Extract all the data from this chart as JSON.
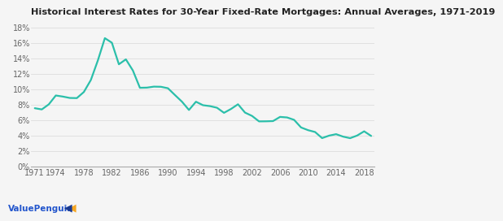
{
  "title": "Historical Interest Rates for 30-Year Fixed-Rate Mortgages: Annual Averages, 1971-2019",
  "years": [
    1971,
    1972,
    1973,
    1974,
    1975,
    1976,
    1977,
    1978,
    1979,
    1980,
    1981,
    1982,
    1983,
    1984,
    1985,
    1986,
    1987,
    1988,
    1989,
    1990,
    1991,
    1992,
    1993,
    1994,
    1995,
    1996,
    1997,
    1998,
    1999,
    2000,
    2001,
    2002,
    2003,
    2004,
    2005,
    2006,
    2007,
    2008,
    2009,
    2010,
    2011,
    2012,
    2013,
    2014,
    2015,
    2016,
    2017,
    2018,
    2019
  ],
  "rates": [
    7.54,
    7.38,
    8.04,
    9.19,
    9.05,
    8.87,
    8.85,
    9.64,
    11.2,
    13.74,
    16.63,
    16.04,
    13.24,
    13.88,
    12.43,
    10.19,
    10.21,
    10.34,
    10.32,
    10.13,
    9.25,
    8.39,
    7.31,
    8.38,
    7.93,
    7.81,
    7.6,
    6.94,
    7.44,
    8.05,
    6.97,
    6.54,
    5.83,
    5.84,
    5.87,
    6.41,
    6.34,
    6.03,
    5.04,
    4.69,
    4.45,
    3.66,
    3.98,
    4.17,
    3.85,
    3.65,
    3.99,
    4.54,
    3.94
  ],
  "line_color": "#2bbfaa",
  "line_width": 1.6,
  "xtick_labels": [
    "1971",
    "1974",
    "1978",
    "1982",
    "1986",
    "1990",
    "1994",
    "1998",
    "2002",
    "2006",
    "2010",
    "2014",
    "2018"
  ],
  "xtick_positions": [
    1971,
    1974,
    1978,
    1982,
    1986,
    1990,
    1994,
    1998,
    2002,
    2006,
    2010,
    2014,
    2018
  ],
  "ytick_labels": [
    "0%",
    "2%",
    "4%",
    "6%",
    "8%",
    "10%",
    "12%",
    "14%",
    "16%",
    "18%"
  ],
  "ytick_values": [
    0,
    2,
    4,
    6,
    8,
    10,
    12,
    14,
    16,
    18
  ],
  "ylim": [
    0,
    19
  ],
  "xlim": [
    1970.5,
    2019.5
  ],
  "bg_color": "#f5f5f5",
  "title_fontsize": 8.2,
  "tick_fontsize": 7.0,
  "watermark_text": "ValuePenguin",
  "watermark_color": "#2255cc",
  "grid_color": "#dddddd",
  "spine_color": "#aaaaaa",
  "title_color": "#222222"
}
